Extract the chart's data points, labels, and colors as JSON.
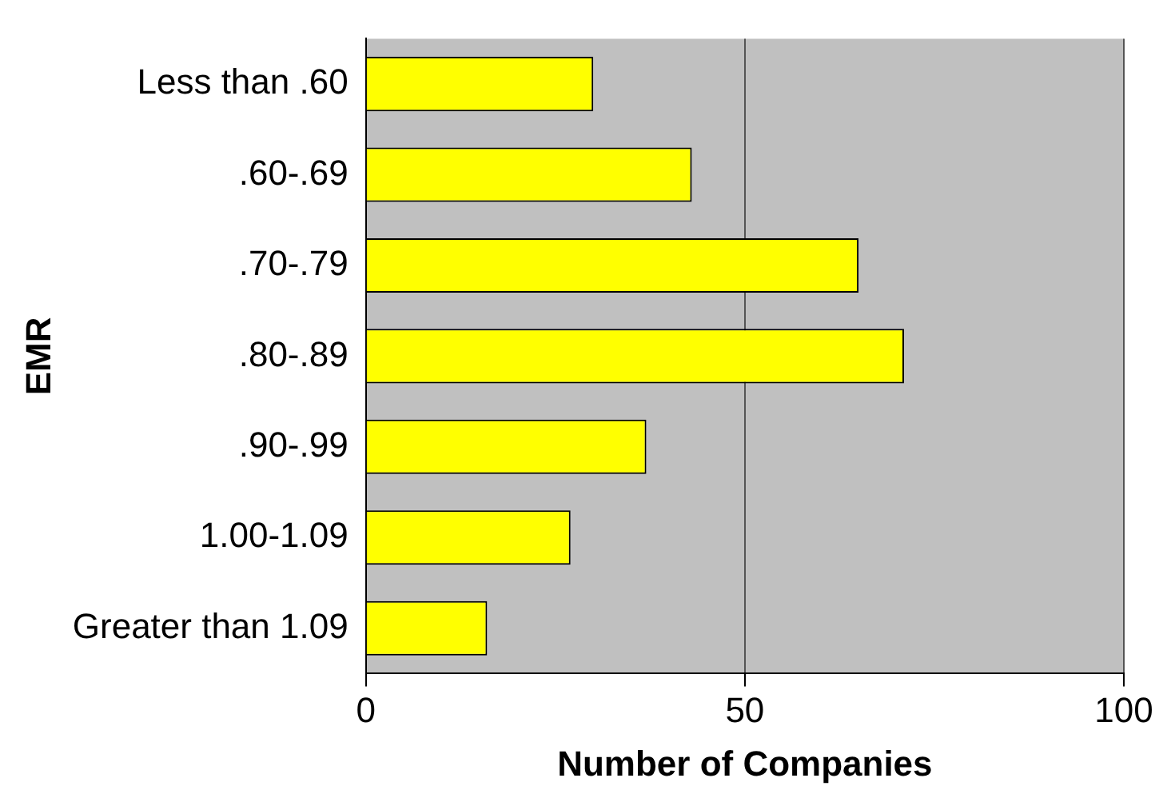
{
  "chart_data": {
    "type": "bar",
    "orientation": "horizontal",
    "xlabel": "Number of Companies",
    "ylabel": "EMR",
    "categories": [
      "Less than .60",
      ".60-.69",
      ".70-.79",
      ".80-.89",
      ".90-.99",
      "1.00-1.09",
      "Greater than 1.09"
    ],
    "values": [
      30,
      43,
      65,
      71,
      37,
      27,
      16
    ],
    "color": "#ffff00",
    "xlim": [
      0,
      100
    ],
    "xticks": [
      0,
      50,
      100
    ],
    "grid": "x",
    "legend": false
  }
}
